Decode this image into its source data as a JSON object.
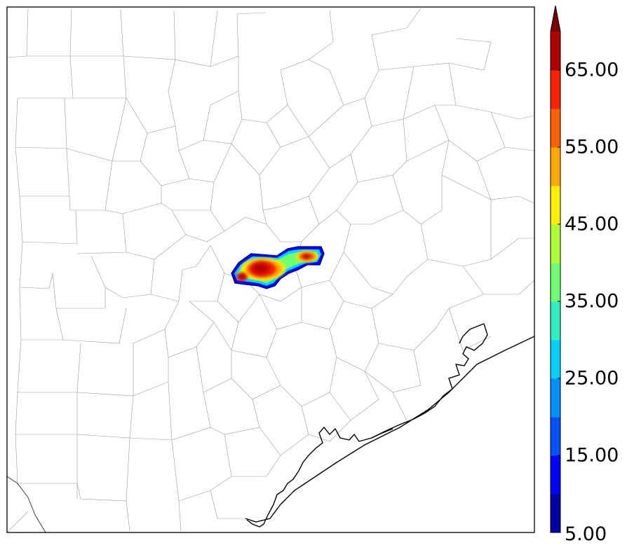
{
  "colorbar": {
    "levels": [
      5,
      10,
      15,
      20,
      25,
      30,
      35,
      40,
      45,
      50,
      55,
      60,
      65,
      70
    ],
    "colors": [
      "#0000a8",
      "#0000ff",
      "#0050ff",
      "#0090ff",
      "#00d0ff",
      "#30f0c0",
      "#70ff70",
      "#b0ff30",
      "#ffee00",
      "#ffa800",
      "#ff6000",
      "#ff2000",
      "#b00000"
    ],
    "extend_color": "#7a0000",
    "extend": "max",
    "tick_labels": [
      "5.00",
      "15.00",
      "25.00",
      "35.00",
      "45.00",
      "55.00",
      "65.00"
    ]
  }
}
